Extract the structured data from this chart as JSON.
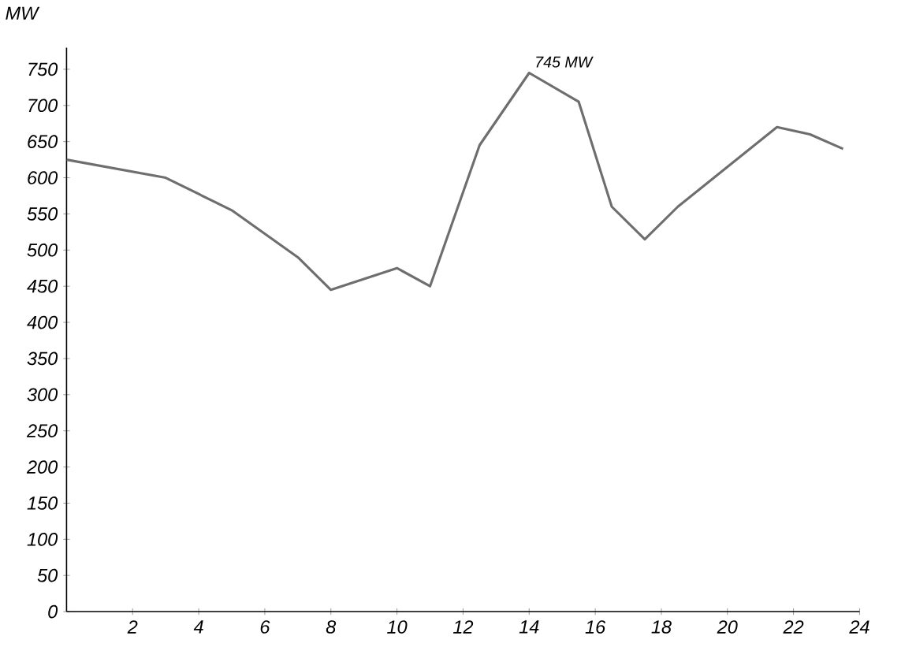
{
  "chart_data": {
    "type": "line",
    "ylabel": "MW",
    "x": [
      0,
      3,
      5,
      7,
      8,
      10,
      11,
      12.5,
      14,
      15.5,
      16.5,
      17.5,
      18.5,
      21.5,
      22.5,
      23.5
    ],
    "values": [
      625,
      600,
      555,
      490,
      445,
      475,
      450,
      645,
      745,
      705,
      560,
      515,
      560,
      670,
      660,
      640
    ],
    "color": "#6e6e6e",
    "marker": "none",
    "line_style": "solid",
    "grid": false,
    "xlim": [
      0,
      24
    ],
    "ylim": [
      0,
      780
    ],
    "xticks": [
      2,
      4,
      6,
      8,
      10,
      12,
      14,
      16,
      18,
      20,
      22,
      24
    ],
    "yticks": [
      0,
      50,
      100,
      150,
      200,
      250,
      300,
      350,
      400,
      450,
      500,
      550,
      600,
      650,
      700,
      750
    ],
    "annotations": [
      {
        "text": "745 MW",
        "x": 14,
        "y": 745
      }
    ]
  }
}
